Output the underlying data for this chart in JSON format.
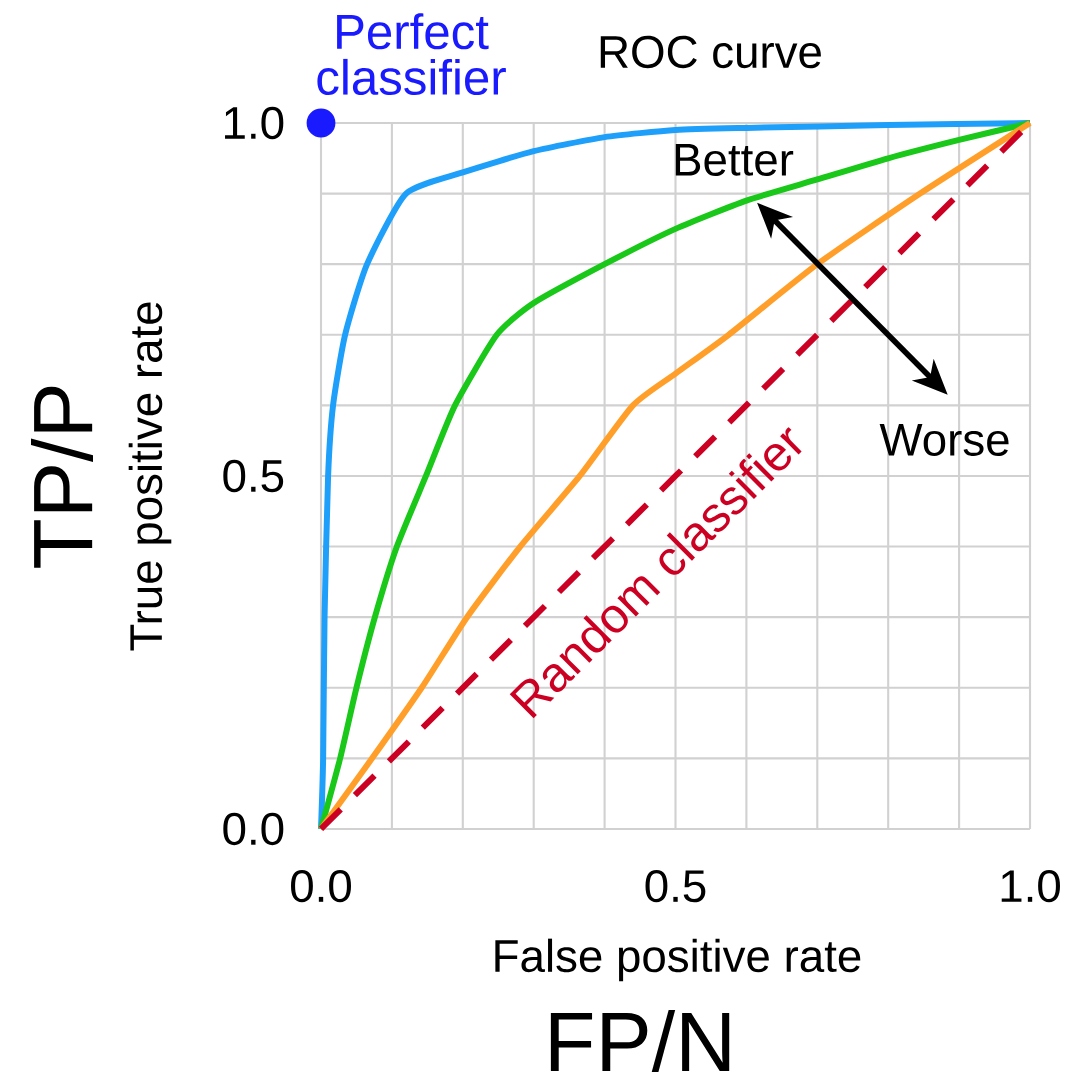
{
  "chart_data": {
    "type": "line",
    "title": "ROC curve",
    "xlabel": "False positive rate",
    "ylabel": "True positive rate",
    "annotations": [
      "Better",
      "Worse",
      "TP/P",
      "FP/N"
    ],
    "xlim": [
      0,
      1
    ],
    "ylim": [
      0,
      1
    ],
    "xticks": [
      {
        "value": 0,
        "label": "0.0"
      },
      {
        "value": 0.1,
        "label": null
      },
      {
        "value": 0.2,
        "label": null
      },
      {
        "value": 0.3,
        "label": null
      },
      {
        "value": 0.4,
        "label": null
      },
      {
        "value": 0.5,
        "label": "0.5"
      },
      {
        "value": 0.6,
        "label": null
      },
      {
        "value": 0.7,
        "label": null
      },
      {
        "value": 0.8,
        "label": null
      },
      {
        "value": 0.9,
        "label": null
      },
      {
        "value": 1,
        "label": "1.0"
      }
    ],
    "yticks": [
      {
        "value": 0,
        "label": "0.0"
      },
      {
        "value": 0.1,
        "label": null
      },
      {
        "value": 0.2,
        "label": null
      },
      {
        "value": 0.3,
        "label": null
      },
      {
        "value": 0.4,
        "label": null
      },
      {
        "value": 0.5,
        "label": "0.5"
      },
      {
        "value": 0.6,
        "label": null
      },
      {
        "value": 0.7,
        "label": null
      },
      {
        "value": 0.8,
        "label": null
      },
      {
        "value": 0.9,
        "label": null
      },
      {
        "value": 1,
        "label": "1.0"
      }
    ],
    "grid": true,
    "series": [
      {
        "color": "#1e9ffa",
        "x": [
          0,
          0.003,
          0.005,
          0.01,
          0.017,
          0.034,
          0.065,
          0.12,
          0.2,
          0.3,
          0.4,
          0.5,
          0.6,
          0.8,
          1
        ],
        "values": [
          0,
          0.1,
          0.3,
          0.5,
          0.6,
          0.7,
          0.8,
          0.9,
          0.93,
          0.96,
          0.98,
          0.99,
          0.993,
          0.997,
          1
        ]
      },
      {
        "color": "#19c819",
        "x": [
          0,
          0.027,
          0.05,
          0.076,
          0.107,
          0.148,
          0.189,
          0.248,
          0.3,
          0.4,
          0.5,
          0.6,
          0.7,
          0.8,
          0.9,
          1
        ],
        "values": [
          0,
          0.1,
          0.2,
          0.3,
          0.4,
          0.5,
          0.6,
          0.7,
          0.745,
          0.8,
          0.85,
          0.89,
          0.92,
          0.95,
          0.976,
          1
        ]
      },
      {
        "color": "#ff9f2a",
        "x": [
          0,
          0.072,
          0.142,
          0.206,
          0.281,
          0.365,
          0.44,
          0.5,
          0.575,
          0.7,
          0.845,
          1
        ],
        "values": [
          0,
          0.1,
          0.2,
          0.3,
          0.4,
          0.5,
          0.6,
          0.645,
          0.7,
          0.8,
          0.9,
          1
        ]
      },
      {
        "name": "Random classifier",
        "color": "#cc0022",
        "x": [
          0,
          1
        ],
        "values": [
          0,
          1
        ],
        "line_style": "dashed"
      },
      {
        "name": "Perfect classifier",
        "type": "scatter",
        "color": "#1a1aff",
        "x": [
          0
        ],
        "values": [
          1
        ]
      }
    ]
  }
}
